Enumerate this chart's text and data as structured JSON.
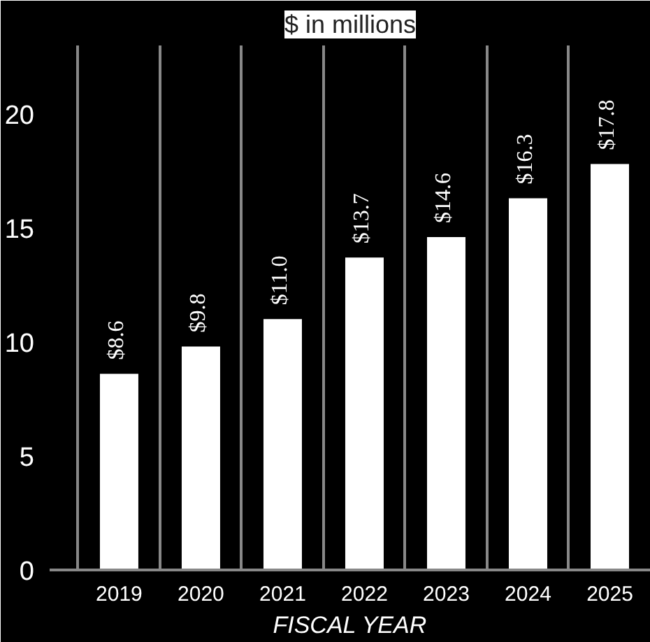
{
  "chart_data": {
    "type": "bar",
    "title": "$ in millions",
    "xlabel": "FISCAL YEAR",
    "categories": [
      "2019",
      "2020",
      "2021",
      "2022",
      "2023",
      "2024",
      "2025"
    ],
    "values": [
      8.6,
      9.8,
      11.0,
      13.7,
      14.6,
      16.3,
      17.8
    ],
    "value_labels": [
      "$8.6",
      "$9.8",
      "$11.0",
      "$13.7",
      "$14.6",
      "$16.3",
      "$17.8"
    ],
    "color": "#ffffff",
    "ylim": [
      0,
      23
    ],
    "yticks": [
      0,
      5,
      10,
      15,
      20
    ],
    "grid": "x"
  }
}
